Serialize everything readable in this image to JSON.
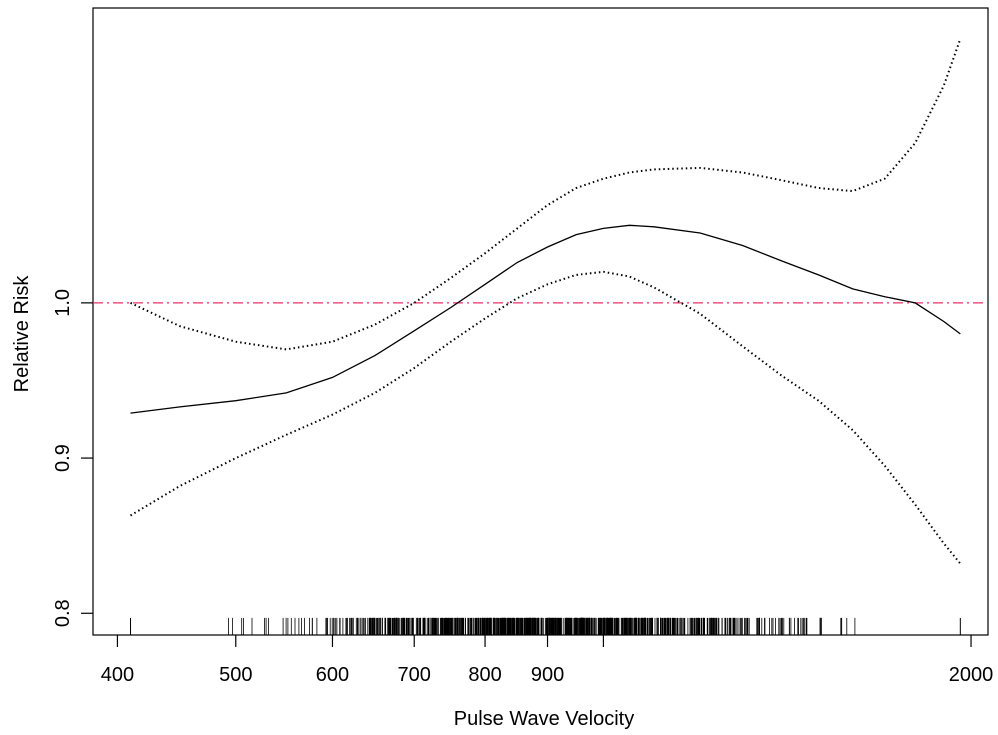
{
  "chart_data": {
    "type": "line",
    "title": "",
    "xlabel": "Pulse Wave Velocity",
    "ylabel": "Relative Risk",
    "x_scale": "log",
    "xlim": [
      382,
      2065
    ],
    "ylim": [
      0.786,
      1.19
    ],
    "x_ticks": [
      400,
      500,
      600,
      700,
      800,
      900,
      1000,
      2000
    ],
    "x_tick_labels": [
      "400",
      "500",
      "600",
      "700",
      "800",
      "900",
      "",
      "2000"
    ],
    "y_ticks": [
      0.8,
      0.9,
      1.0
    ],
    "y_tick_labels": [
      "0.8",
      "0.9",
      "1.0"
    ],
    "grid": false,
    "reference_line": {
      "y": 1.0,
      "style": "dashdot",
      "color": "#e8306a"
    },
    "series": [
      {
        "style": "solid",
        "color": "#000000",
        "points": [
          [
            410,
            0.929
          ],
          [
            450,
            0.933
          ],
          [
            500,
            0.937
          ],
          [
            550,
            0.942
          ],
          [
            600,
            0.952
          ],
          [
            650,
            0.966
          ],
          [
            700,
            0.982
          ],
          [
            750,
            0.997
          ],
          [
            800,
            1.012
          ],
          [
            850,
            1.026
          ],
          [
            900,
            1.036
          ],
          [
            950,
            1.044
          ],
          [
            1000,
            1.048
          ],
          [
            1050,
            1.05
          ],
          [
            1100,
            1.049
          ],
          [
            1200,
            1.045
          ],
          [
            1300,
            1.037
          ],
          [
            1400,
            1.027
          ],
          [
            1500,
            1.018
          ],
          [
            1600,
            1.009
          ],
          [
            1700,
            1.004
          ],
          [
            1800,
            1.0
          ],
          [
            1900,
            0.988
          ],
          [
            1960,
            0.98
          ]
        ]
      },
      {
        "style": "dotted",
        "color": "#000000",
        "points": [
          [
            410,
            1.0
          ],
          [
            450,
            0.985
          ],
          [
            500,
            0.975
          ],
          [
            550,
            0.97
          ],
          [
            600,
            0.975
          ],
          [
            650,
            0.986
          ],
          [
            700,
            1.0
          ],
          [
            750,
            1.016
          ],
          [
            800,
            1.032
          ],
          [
            850,
            1.048
          ],
          [
            900,
            1.063
          ],
          [
            950,
            1.074
          ],
          [
            1000,
            1.08
          ],
          [
            1050,
            1.084
          ],
          [
            1100,
            1.086
          ],
          [
            1200,
            1.087
          ],
          [
            1300,
            1.084
          ],
          [
            1400,
            1.079
          ],
          [
            1500,
            1.074
          ],
          [
            1600,
            1.072
          ],
          [
            1700,
            1.08
          ],
          [
            1800,
            1.103
          ],
          [
            1900,
            1.14
          ],
          [
            1960,
            1.17
          ]
        ]
      },
      {
        "style": "dotted",
        "color": "#000000",
        "points": [
          [
            410,
            0.863
          ],
          [
            450,
            0.882
          ],
          [
            500,
            0.9
          ],
          [
            550,
            0.915
          ],
          [
            600,
            0.928
          ],
          [
            650,
            0.942
          ],
          [
            700,
            0.958
          ],
          [
            750,
            0.975
          ],
          [
            800,
            0.99
          ],
          [
            850,
            1.003
          ],
          [
            900,
            1.012
          ],
          [
            950,
            1.018
          ],
          [
            1000,
            1.02
          ],
          [
            1050,
            1.017
          ],
          [
            1100,
            1.01
          ],
          [
            1200,
            0.993
          ],
          [
            1300,
            0.972
          ],
          [
            1400,
            0.953
          ],
          [
            1500,
            0.937
          ],
          [
            1600,
            0.918
          ],
          [
            1700,
            0.895
          ],
          [
            1800,
            0.87
          ],
          [
            1900,
            0.845
          ],
          [
            1960,
            0.832
          ]
        ]
      }
    ],
    "rug_count": 900,
    "rug_range": [
      410,
      1960
    ]
  }
}
